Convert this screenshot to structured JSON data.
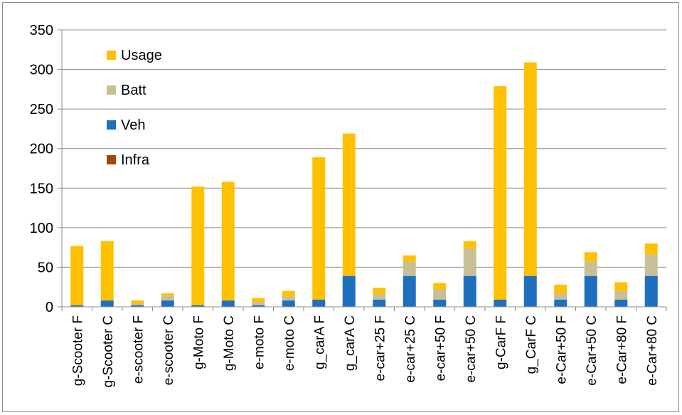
{
  "chart_data": {
    "type": "bar",
    "stacked": true,
    "categories": [
      "g-Scooter F",
      "g-Scooter C",
      "e-scooter F",
      "e-scooter C",
      "g-Moto F",
      "g-Moto C",
      "e-moto F",
      "e-moto C",
      "g_carA F",
      "g_carA C",
      "e-car+25 F",
      "e-car+25 C",
      "e-car+50 F",
      "e-car+50 C",
      "g-CarF F",
      "g_CarF C",
      "e-Car+50 F",
      "e-Car+50 C",
      "e-Car+80 F",
      "e-Car+80 C"
    ],
    "series": [
      {
        "name": "Infra",
        "color": "#9c4a0c",
        "values": [
          0,
          0,
          0,
          0,
          0,
          0,
          0,
          0,
          0,
          0,
          0,
          0,
          0,
          0,
          0,
          0,
          0,
          0,
          0,
          0
        ]
      },
      {
        "name": "Veh",
        "color": "#1f6fbf",
        "values": [
          2,
          8,
          2,
          8,
          2,
          8,
          2,
          8,
          9,
          39,
          9,
          39,
          9,
          39,
          9,
          39,
          9,
          39,
          9,
          39
        ]
      },
      {
        "name": "Batt",
        "color": "#c9bf97",
        "values": [
          0,
          0,
          2,
          6,
          0,
          0,
          4,
          5,
          0,
          0,
          7,
          18,
          13,
          35,
          0,
          0,
          8,
          18,
          11,
          27
        ]
      },
      {
        "name": "Usage",
        "color": "#ffc000",
        "values": [
          75,
          75,
          4,
          3,
          150,
          150,
          5,
          7,
          180,
          180,
          8,
          8,
          8,
          9,
          270,
          270,
          11,
          12,
          11,
          14
        ]
      }
    ],
    "legend_order": [
      "Usage",
      "Batt",
      "Veh",
      "Infra"
    ],
    "ylim": [
      0,
      350
    ],
    "yticks": [
      "0",
      "50",
      "100",
      "150",
      "200",
      "250",
      "300",
      "350"
    ],
    "ytick_values": [
      0,
      50,
      100,
      150,
      200,
      250,
      300,
      350
    ],
    "grid": true,
    "legend_position": "top-left-inside",
    "title": "",
    "xlabel": "",
    "ylabel": ""
  }
}
